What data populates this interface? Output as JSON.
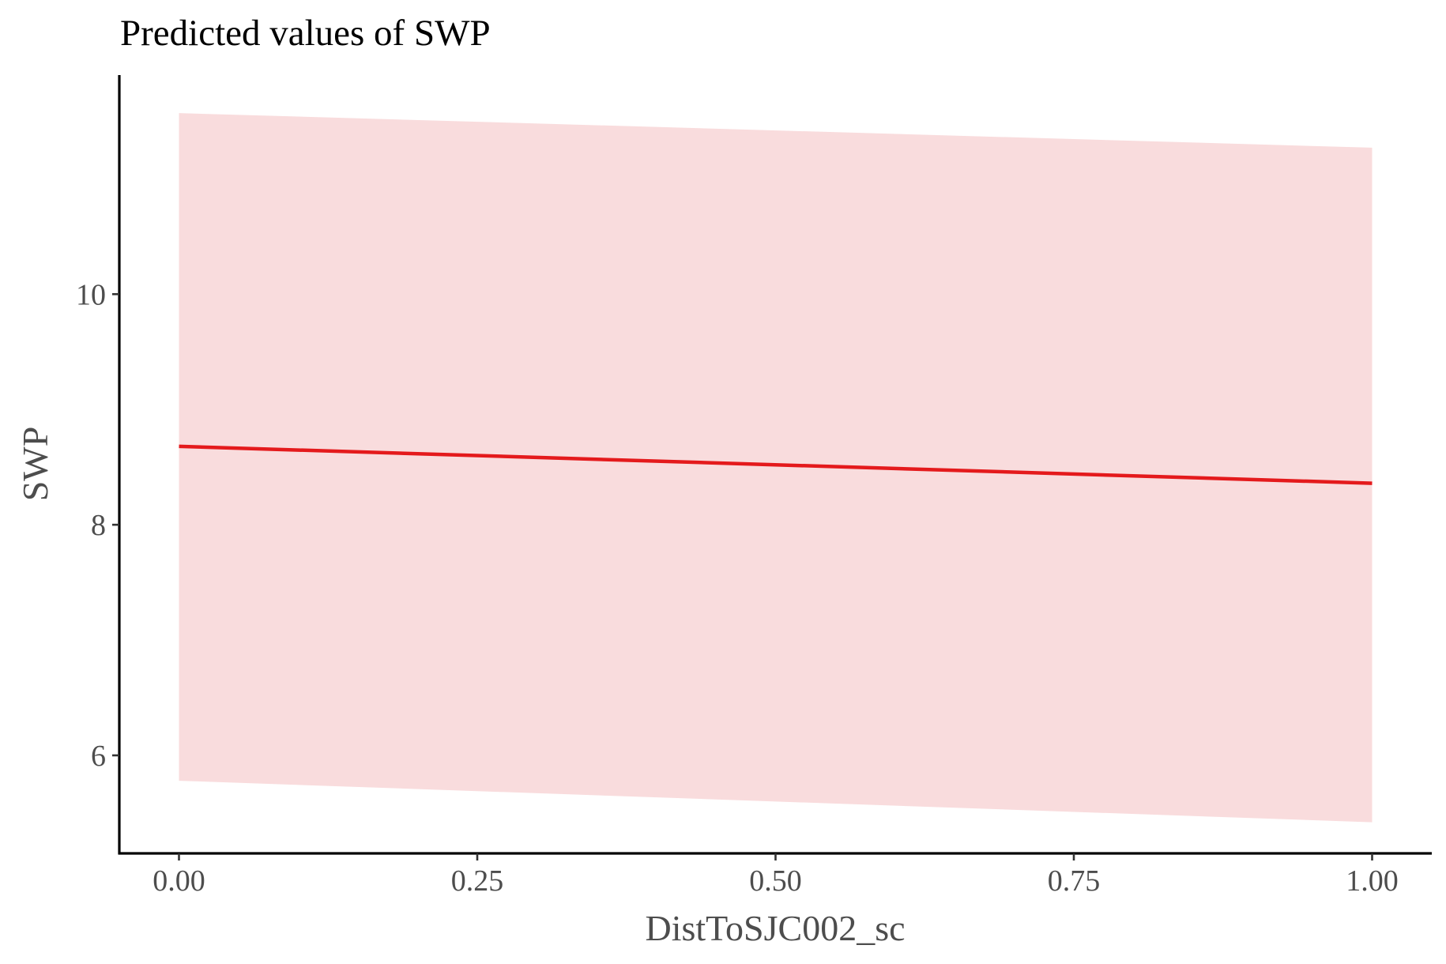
{
  "chart_data": {
    "type": "line",
    "title": "Predicted values of SWP",
    "xlabel": "DistToSJC002_sc",
    "ylabel": "SWP",
    "xlim": [
      -0.05,
      1.05
    ],
    "ylim": [
      5.15,
      11.9
    ],
    "x_ticks": [
      0.0,
      0.25,
      0.5,
      0.75,
      1.0
    ],
    "x_tick_labels": [
      "0.00",
      "0.25",
      "0.50",
      "0.75",
      "1.00"
    ],
    "y_ticks": [
      6,
      8,
      10
    ],
    "y_tick_labels": [
      "6",
      "8",
      "10"
    ],
    "series": [
      {
        "x": [
          0.0,
          1.0
        ],
        "y": [
          8.68,
          8.36
        ],
        "ci_low": [
          5.78,
          5.42
        ],
        "ci_high": [
          11.57,
          11.27
        ],
        "color": "#e41a1c",
        "ribbon_color": "#f9dcdd"
      }
    ],
    "grid": false,
    "legend": "none"
  }
}
